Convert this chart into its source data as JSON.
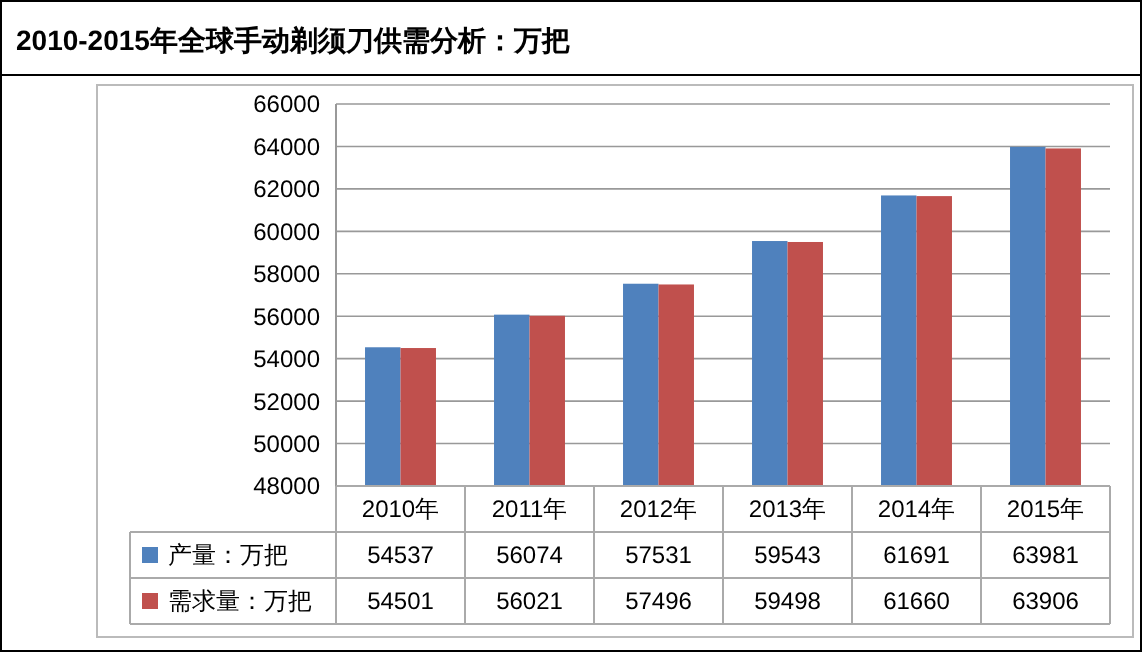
{
  "chart_data": {
    "type": "bar",
    "title": "2010-2015年全球手动剃须刀供需分析：万把",
    "categories": [
      "2010年",
      "2011年",
      "2012年",
      "2013年",
      "2014年",
      "2015年"
    ],
    "series": [
      {
        "name": "产量：万把",
        "color": "#4f81bd",
        "values": [
          54537,
          56074,
          57531,
          59543,
          61691,
          63981
        ]
      },
      {
        "name": "需求量：万把",
        "color": "#c0504d",
        "values": [
          54501,
          56021,
          57496,
          59498,
          61660,
          63906
        ]
      }
    ],
    "ylim": [
      48000,
      66000
    ],
    "yticks": [
      48000,
      50000,
      52000,
      54000,
      56000,
      58000,
      60000,
      62000,
      64000,
      66000
    ],
    "grid": "y",
    "legend": "bottom",
    "data_labels": true
  }
}
